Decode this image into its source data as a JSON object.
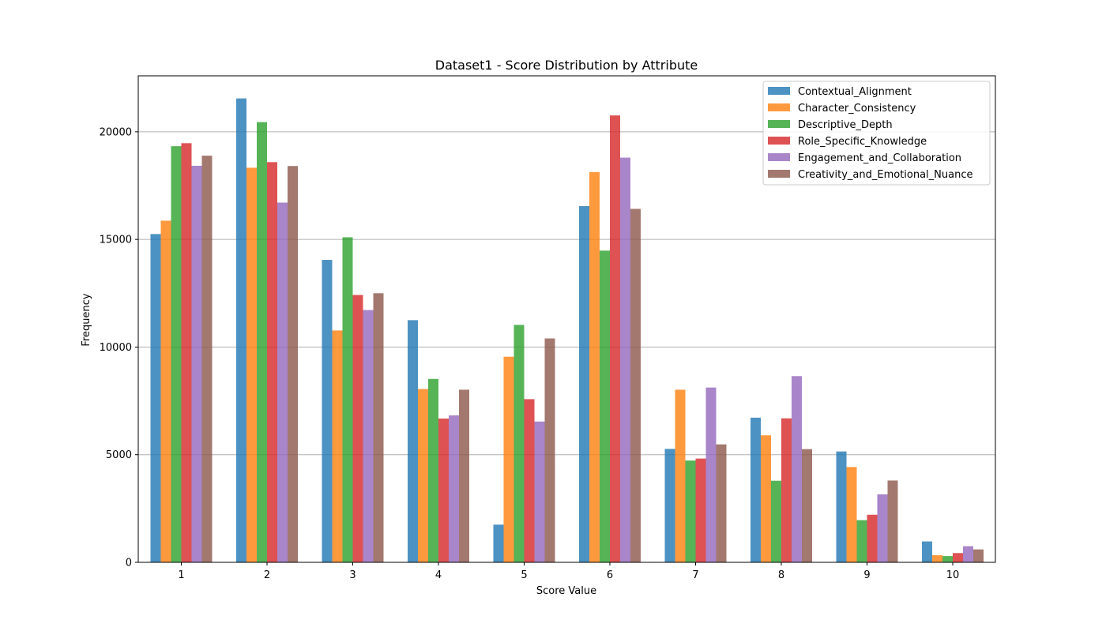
{
  "chart_data": {
    "type": "bar",
    "title": "Dataset1 - Score Distribution by Attribute",
    "xlabel": "Score Value",
    "ylabel": "Frequency",
    "ylim": [
      0,
      22600
    ],
    "yticks": [
      0,
      5000,
      10000,
      15000,
      20000
    ],
    "grid": "y-major",
    "legend_position": "top-right",
    "categories": [
      "1",
      "2",
      "3",
      "4",
      "5",
      "6",
      "7",
      "8",
      "9",
      "10"
    ],
    "series": [
      {
        "name": "Contextual_Alignment",
        "color": "#1f77b4",
        "values": [
          15250,
          21550,
          14050,
          11250,
          1750,
          16550,
          5270,
          6720,
          5150,
          970
        ]
      },
      {
        "name": "Character_Consistency",
        "color": "#ff7f0e",
        "values": [
          15870,
          18330,
          10770,
          8050,
          9550,
          18130,
          8020,
          5900,
          4430,
          330
        ]
      },
      {
        "name": "Descriptive_Depth",
        "color": "#2ca02c",
        "values": [
          19330,
          20450,
          15100,
          8520,
          11030,
          14480,
          4730,
          3790,
          1960,
          290
        ]
      },
      {
        "name": "Role_Specific_Knowledge",
        "color": "#d62728",
        "values": [
          19470,
          18590,
          12420,
          6680,
          7580,
          20760,
          4820,
          6690,
          2210,
          430
        ]
      },
      {
        "name": "Engagement_and_Collaboration",
        "color": "#9467bd",
        "values": [
          18420,
          16710,
          11720,
          6830,
          6540,
          18800,
          8120,
          8650,
          3160,
          750
        ]
      },
      {
        "name": "Creativity_and_Emotional_Nuance",
        "color": "#8c564b",
        "values": [
          18890,
          18410,
          12500,
          8020,
          10400,
          16420,
          5480,
          5260,
          3800,
          600
        ]
      }
    ]
  }
}
